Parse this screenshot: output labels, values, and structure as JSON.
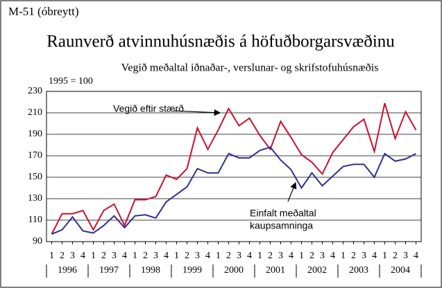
{
  "chart_data": {
    "type": "line",
    "label": "M-51  (óbreytt)",
    "title": "Raunverð atvinnuhúsnæðis á höfuðborgarsvæðinu",
    "subtitle": "Vegið meðaltal iðnaðar-, verslunar- og skrifstofuhúsnæðis",
    "y_label": "1995 = 100",
    "categories": [
      "1",
      "2",
      "3",
      "4",
      "1",
      "2",
      "3",
      "4",
      "1",
      "2",
      "3",
      "4",
      "1",
      "2",
      "3",
      "4",
      "1",
      "2",
      "3",
      "4",
      "1",
      "2",
      "3",
      "4",
      "1",
      "2",
      "3",
      "4",
      "1",
      "2",
      "3",
      "4",
      "1",
      "2",
      "3",
      "4"
    ],
    "groups": [
      "1996",
      "1997",
      "1998",
      "1999",
      "2000",
      "2001",
      "2002",
      "2003",
      "2004"
    ],
    "ylim": [
      90,
      230
    ],
    "yticks": [
      90,
      110,
      130,
      150,
      170,
      190,
      210,
      230
    ],
    "grid": true,
    "series": [
      {
        "name": "Vegið eftir stærð",
        "color": "#c8102e",
        "values": [
          97,
          116,
          116,
          119,
          101,
          119,
          125,
          105,
          129,
          129,
          132,
          152,
          148,
          158,
          196,
          176,
          194,
          214,
          198,
          205,
          189,
          176,
          202,
          187,
          171,
          164,
          153,
          173,
          185,
          197,
          204,
          174,
          219,
          186,
          211,
          194
        ]
      },
      {
        "name": "Einfalt meðaltal kaupsamninga",
        "color": "#2b2f8f",
        "values": [
          97,
          101,
          113,
          100,
          98,
          105,
          114,
          103,
          114,
          115,
          112,
          127,
          134,
          141,
          158,
          154,
          154,
          172,
          168,
          168,
          175,
          178,
          166,
          157,
          140,
          154,
          142,
          151,
          160,
          162,
          162,
          150,
          172,
          165,
          167,
          172
        ]
      }
    ],
    "annotations": [
      {
        "lines": [
          "Vegið eftir stærð"
        ]
      },
      {
        "lines": [
          "Einfalt meðaltal",
          "kaupsamninga"
        ]
      }
    ]
  }
}
